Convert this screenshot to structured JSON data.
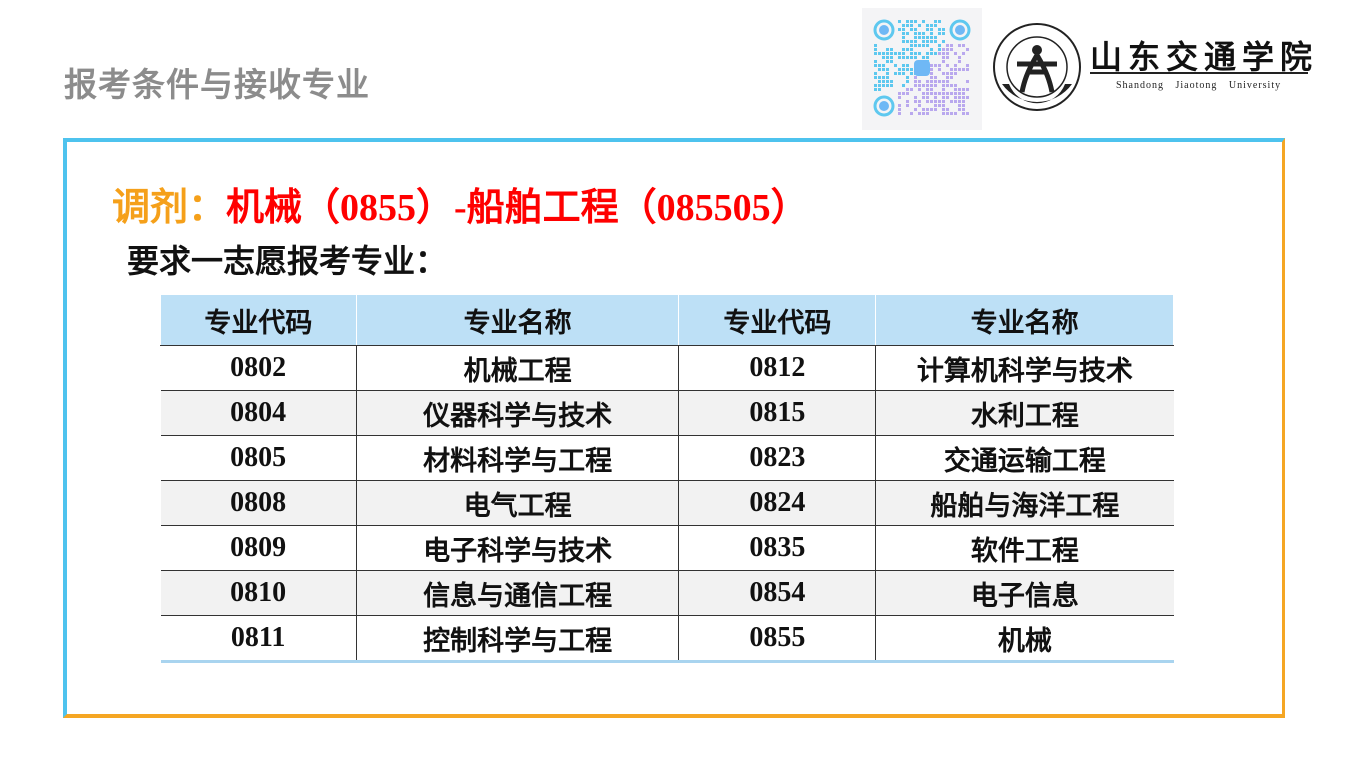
{
  "slide_title": "报考条件与接收专业",
  "logo": {
    "name_cn": "山东交通学院",
    "name_en": "Shandong  Jiaotong  University",
    "seal_text": "SHANDONG JIAOTONG UNIVERSITY"
  },
  "heading": {
    "prefix": "调剂：",
    "main": "机械（0855）-船舶工程（085505）"
  },
  "subheading": "要求一志愿报考专业：",
  "colors": {
    "frame_top_left": "#4ec3ee",
    "frame_bottom_right": "#f5a623",
    "heading_prefix": "#f5a01a",
    "heading_main": "#ff0000",
    "table_header": "#bde0f6"
  },
  "table": {
    "headers": [
      "专业代码",
      "专业名称",
      "专业代码",
      "专业名称"
    ],
    "rows": [
      [
        "0802",
        "机械工程",
        "0812",
        "计算机科学与技术"
      ],
      [
        "0804",
        "仪器科学与技术",
        "0815",
        "水利工程"
      ],
      [
        "0805",
        "材料科学与工程",
        "0823",
        "交通运输工程"
      ],
      [
        "0808",
        "电气工程",
        "0824",
        "船舶与海洋工程"
      ],
      [
        "0809",
        "电子科学与技术",
        "0835",
        "软件工程"
      ],
      [
        "0810",
        "信息与通信工程",
        "0854",
        "电子信息"
      ],
      [
        "0811",
        "控制科学与工程",
        "0855",
        "机械"
      ]
    ]
  }
}
